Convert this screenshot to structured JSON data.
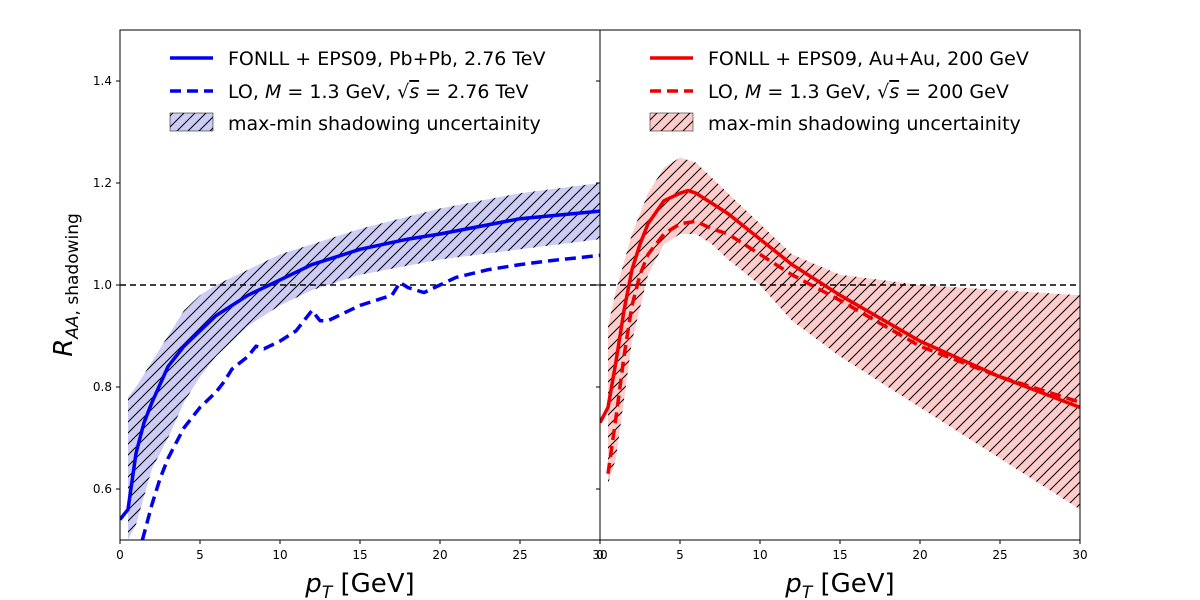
{
  "chart_data": [
    {
      "type": "line",
      "panel": "left",
      "xlabel": "p_T [GeV]",
      "ylabel": "R_AA, shadowing",
      "xlim": [
        0,
        30
      ],
      "ylim": [
        0.5,
        1.5
      ],
      "xticks": [
        "0",
        "5",
        "10",
        "15",
        "20",
        "25",
        "30"
      ],
      "yticks": [
        "0.6",
        "0.8",
        "1.0",
        "1.2",
        "1.4"
      ],
      "reference_line": {
        "y": 1.0,
        "style": "dashed",
        "color": "#000000"
      },
      "legend_position": "top",
      "band": {
        "name": "max-min shadowing uncertainity",
        "color": "#0000dd",
        "x": [
          0.5,
          1,
          2,
          3,
          4,
          5,
          6,
          8,
          10,
          12,
          15,
          20,
          25,
          30
        ],
        "upper": [
          0.78,
          0.8,
          0.85,
          0.9,
          0.95,
          0.98,
          1.0,
          1.03,
          1.06,
          1.08,
          1.11,
          1.15,
          1.18,
          1.2
        ],
        "lower": [
          0.5,
          0.53,
          0.64,
          0.7,
          0.77,
          0.82,
          0.86,
          0.92,
          0.96,
          0.99,
          1.02,
          1.05,
          1.07,
          1.09
        ]
      },
      "series": [
        {
          "name": "FONLL + EPS09, Pb+Pb, 2.76 TeV",
          "style": "solid",
          "color": "#0000ee",
          "x": [
            0,
            0.5,
            1,
            1.5,
            2,
            3,
            4,
            5,
            6,
            8,
            10,
            12,
            15,
            18,
            20,
            25,
            30
          ],
          "y": [
            0.54,
            0.56,
            0.67,
            0.73,
            0.77,
            0.84,
            0.88,
            0.91,
            0.94,
            0.98,
            1.01,
            1.04,
            1.07,
            1.09,
            1.1,
            1.13,
            1.145
          ]
        },
        {
          "name": "LO, M = 1.3 GeV, √s = 2.76 TeV",
          "style": "dashed",
          "color": "#0000ee",
          "x": [
            1.4,
            2,
            2.5,
            3,
            4,
            5,
            6,
            6.5,
            7,
            8,
            8.5,
            9,
            10,
            11,
            12,
            12.5,
            13,
            14,
            15,
            16,
            17,
            17.5,
            18,
            18.5,
            19,
            20,
            21,
            23,
            25,
            27,
            30
          ],
          "y": [
            0.5,
            0.57,
            0.62,
            0.66,
            0.72,
            0.76,
            0.79,
            0.81,
            0.835,
            0.86,
            0.88,
            0.875,
            0.89,
            0.91,
            0.95,
            0.93,
            0.93,
            0.945,
            0.96,
            0.97,
            0.98,
            1.005,
            0.995,
            0.99,
            0.985,
            1.0,
            1.015,
            1.03,
            1.04,
            1.048,
            1.058
          ]
        }
      ]
    },
    {
      "type": "line",
      "panel": "right",
      "xlabel": "p_T [GeV]",
      "xlim": [
        0,
        30
      ],
      "ylim": [
        0.5,
        1.5
      ],
      "xticks": [
        "0",
        "5",
        "10",
        "15",
        "20",
        "25",
        "30"
      ],
      "reference_line": {
        "y": 1.0,
        "style": "dashed",
        "color": "#000000"
      },
      "legend_position": "top",
      "band": {
        "name": "max-min shadowing uncertainity",
        "color": "#ff9999",
        "x": [
          0.5,
          1,
          2,
          3,
          4,
          5,
          6,
          7,
          8,
          10,
          12,
          15,
          20,
          25,
          30
        ],
        "upper": [
          0.92,
          0.99,
          1.1,
          1.18,
          1.23,
          1.25,
          1.24,
          1.21,
          1.18,
          1.12,
          1.06,
          1.02,
          1.0,
          0.99,
          0.98
        ],
        "lower": [
          0.61,
          0.66,
          0.89,
          1.02,
          1.08,
          1.1,
          1.1,
          1.08,
          1.05,
          1.0,
          0.93,
          0.86,
          0.76,
          0.66,
          0.56
        ]
      },
      "series": [
        {
          "name": "FONLL + EPS09, Au+Au, 200 GeV",
          "style": "solid",
          "color": "#ee0000",
          "x": [
            0,
            0.5,
            1,
            1.5,
            2,
            2.5,
            3,
            4,
            5,
            5.5,
            6,
            7,
            8,
            10,
            12,
            15,
            20,
            25,
            30
          ],
          "y": [
            0.73,
            0.76,
            0.85,
            0.95,
            1.03,
            1.08,
            1.12,
            1.165,
            1.18,
            1.185,
            1.18,
            1.16,
            1.14,
            1.09,
            1.04,
            0.98,
            0.89,
            0.82,
            0.76
          ]
        },
        {
          "name": "LO, M = 1.3 GeV, √s = 200 GeV",
          "style": "dashed",
          "color": "#ee0000",
          "x": [
            0.5,
            1,
            1.5,
            2,
            2.5,
            3,
            4,
            5,
            6,
            7,
            8,
            10,
            12,
            15,
            20,
            25,
            30
          ],
          "y": [
            0.63,
            0.74,
            0.86,
            0.96,
            1.02,
            1.06,
            1.1,
            1.12,
            1.125,
            1.11,
            1.1,
            1.06,
            1.02,
            0.97,
            0.88,
            0.82,
            0.77
          ]
        }
      ]
    }
  ]
}
